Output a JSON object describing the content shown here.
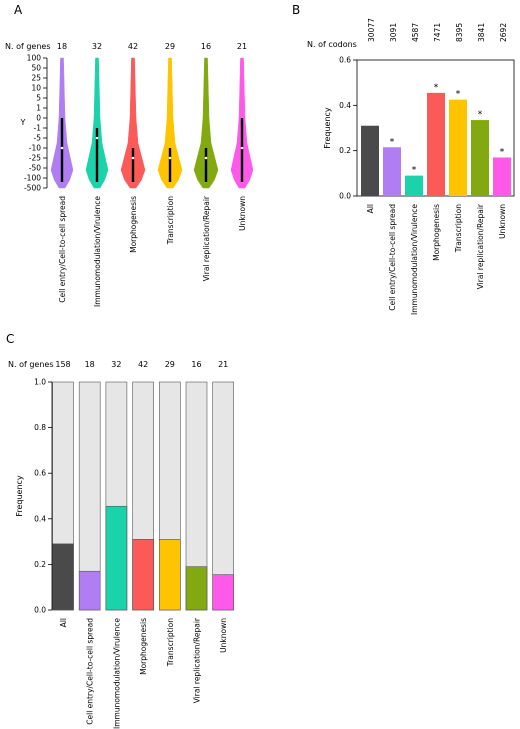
{
  "panels": {
    "a": {
      "label": "A"
    },
    "b": {
      "label": "B"
    },
    "c": {
      "label": "C"
    }
  },
  "chart_data": [
    {
      "type": "violin",
      "panel": "A",
      "count_label": "N. of genes",
      "counts": [
        "18",
        "32",
        "42",
        "29",
        "16",
        "21"
      ],
      "ylabel": "Y",
      "ytick_labels": [
        "100",
        "50",
        "25",
        "10",
        "5",
        "1",
        "0",
        "-1",
        "-5",
        "-10",
        "-25",
        "-50",
        "-100",
        "-500"
      ],
      "categories": [
        "Cell entry/Cell-to-cell spread",
        "Immunomodulation/Virulence",
        "Morphogenesis",
        "Transcription",
        "Viral replication/Repair",
        "Unknown"
      ],
      "colors": [
        "#b07ef2",
        "#1bd3ab",
        "#fb5a59",
        "#ffc400",
        "#82aa10",
        "#ff59ea"
      ],
      "medians": [
        -10,
        -5,
        -25,
        -25,
        -25,
        -10
      ]
    },
    {
      "type": "bar",
      "panel": "B",
      "count_label": "N. of codons",
      "counts": [
        "30077",
        "3091",
        "4587",
        "7471",
        "8395",
        "3841",
        "2692"
      ],
      "ylabel": "Frequency",
      "ylim": [
        0,
        0.6
      ],
      "yticks": [
        "0.0",
        "0.2",
        "0.4",
        "0.6"
      ],
      "categories": [
        "All",
        "Cell entry/Cell-to-cell spread",
        "Immunomodulation/Virulence",
        "Morphogenesis",
        "Transcription",
        "Viral replication/Repair",
        "Unknown"
      ],
      "values": [
        0.31,
        0.215,
        0.09,
        0.455,
        0.425,
        0.335,
        0.17
      ],
      "significance": [
        "",
        "*",
        "*",
        "*",
        "*",
        "*",
        "*"
      ],
      "colors": [
        "#4a4a4a",
        "#b07ef2",
        "#1bd3ab",
        "#fb5a59",
        "#ffc400",
        "#82aa10",
        "#ff59ea"
      ]
    },
    {
      "type": "stacked-bar",
      "panel": "C",
      "count_label": "N. of genes",
      "counts": [
        "158",
        "18",
        "32",
        "42",
        "29",
        "16",
        "21"
      ],
      "ylabel": "Frequency",
      "ylim": [
        0,
        1.0
      ],
      "yticks": [
        "0.0",
        "0.2",
        "0.4",
        "0.6",
        "0.8",
        "1.0"
      ],
      "categories": [
        "All",
        "Cell entry/Cell-to-cell spread",
        "Immunomodulation/Virulence",
        "Morphogenesis",
        "Transcription",
        "Viral replication/Repair",
        "Unknown"
      ],
      "values": [
        0.29,
        0.17,
        0.455,
        0.31,
        0.31,
        0.19,
        0.155
      ],
      "colors": [
        "#4a4a4a",
        "#b07ef2",
        "#1bd3ab",
        "#fb5a59",
        "#ffc400",
        "#82aa10",
        "#ff59ea"
      ],
      "background_color": "#e6e6e6"
    }
  ]
}
